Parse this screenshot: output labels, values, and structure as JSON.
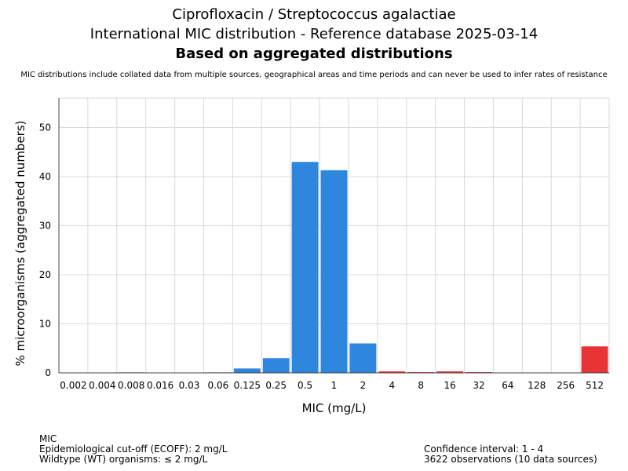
{
  "header": {
    "title_line1": "Ciprofloxacin / Streptococcus agalactiae",
    "title_line2": "International MIC distribution - Reference database 2025-03-14",
    "title_line3": "Based on aggregated distributions",
    "subtitle": "MIC distributions include collated data from multiple sources, geographical areas and time periods and can never be used to infer rates of resistance"
  },
  "footer": {
    "left": [
      "MIC",
      "Epidemiological cut-off (ECOFF): 2 mg/L",
      "Wildtype (WT) organisms: ≤ 2 mg/L"
    ],
    "right": [
      "Confidence interval: 1 - 4",
      "3622 observations (10 data sources)"
    ]
  },
  "colors": {
    "wildtype": "#2e86de",
    "non_wildtype": "#e83434",
    "grid": "#d9d9d9"
  },
  "chart_data": {
    "type": "bar",
    "title": "Ciprofloxacin / Streptococcus agalactiae",
    "xlabel": "MIC (mg/L)",
    "ylabel": "% microorganisms (aggregated numbers)",
    "categories": [
      "0.002",
      "0.004",
      "0.008",
      "0.016",
      "0.03",
      "0.06",
      "0.125",
      "0.25",
      "0.5",
      "1",
      "2",
      "4",
      "8",
      "16",
      "32",
      "64",
      "128",
      "256",
      "512"
    ],
    "values": [
      0,
      0,
      0.1,
      0,
      0,
      0.1,
      0.9,
      3.0,
      43.0,
      41.3,
      6.0,
      0.3,
      0.15,
      0.3,
      0.15,
      0,
      0,
      0,
      5.4
    ],
    "ecoff_index": 10,
    "ylim": [
      0,
      56
    ],
    "yticks": [
      0,
      10,
      20,
      30,
      40,
      50
    ],
    "grid": true
  }
}
